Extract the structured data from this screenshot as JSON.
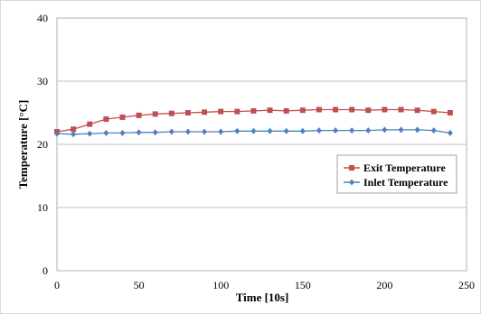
{
  "chart_data": {
    "type": "line",
    "title": "",
    "xlabel": "Time [10s]",
    "ylabel": "Temperature [°C]",
    "xlim": [
      0,
      250
    ],
    "ylim": [
      0,
      40
    ],
    "x_ticks": [
      0,
      50,
      100,
      150,
      200,
      250
    ],
    "y_ticks": [
      0,
      10,
      20,
      30,
      40
    ],
    "grid": {
      "horizontal": true,
      "vertical": false
    },
    "legend": {
      "placement": "center-right"
    },
    "series": [
      {
        "name": "Exit Temperature",
        "color": "#C0504D",
        "marker": "square",
        "x": [
          0,
          10,
          20,
          30,
          40,
          50,
          60,
          70,
          80,
          90,
          100,
          110,
          120,
          130,
          140,
          150,
          160,
          170,
          180,
          190,
          200,
          210,
          220,
          230,
          240
        ],
        "y": [
          22.0,
          22.4,
          23.2,
          24.0,
          24.3,
          24.6,
          24.8,
          24.9,
          25.0,
          25.1,
          25.2,
          25.2,
          25.3,
          25.4,
          25.3,
          25.4,
          25.5,
          25.5,
          25.5,
          25.4,
          25.5,
          25.5,
          25.4,
          25.2,
          25.0
        ]
      },
      {
        "name": "Inlet Temperature",
        "color": "#4F81BD",
        "marker": "diamond",
        "x": [
          0,
          10,
          20,
          30,
          40,
          50,
          60,
          70,
          80,
          90,
          100,
          110,
          120,
          130,
          140,
          150,
          160,
          170,
          180,
          190,
          200,
          210,
          220,
          230,
          240
        ],
        "y": [
          21.7,
          21.6,
          21.7,
          21.8,
          21.8,
          21.9,
          21.9,
          22.0,
          22.0,
          22.0,
          22.0,
          22.1,
          22.1,
          22.1,
          22.1,
          22.1,
          22.2,
          22.2,
          22.2,
          22.2,
          22.3,
          22.3,
          22.3,
          22.2,
          21.8
        ]
      }
    ]
  }
}
